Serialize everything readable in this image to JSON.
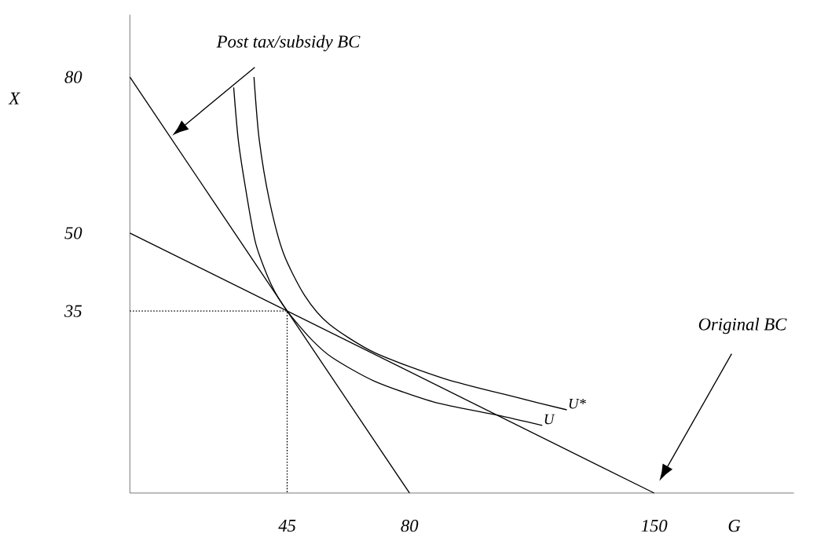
{
  "chart_data": {
    "type": "line",
    "xlabel": "G",
    "ylabel": "X",
    "xlim": [
      0,
      190
    ],
    "ylim": [
      0,
      92
    ],
    "xticks": [
      45,
      80,
      150
    ],
    "yticks": [
      35,
      50,
      80
    ],
    "grid": false,
    "marker": "none",
    "series": [
      {
        "x": [
          0,
          150
        ],
        "values": [
          50,
          0
        ],
        "color": "#000000"
      },
      {
        "x": [
          0,
          80
        ],
        "values": [
          80,
          0
        ],
        "color": "#000000"
      },
      {
        "name": "U",
        "x": [
          29.7,
          31,
          33,
          36,
          40.5,
          45,
          52,
          58,
          70,
          87,
          105,
          118
        ],
        "values": [
          78,
          68,
          59,
          48,
          40,
          35,
          29.5,
          26,
          21.5,
          17.5,
          15,
          13
        ],
        "color": "#000000"
      },
      {
        "name": "U*",
        "x": [
          35.5,
          37,
          40,
          44,
          50,
          57,
          70,
          90,
          110,
          125
        ],
        "values": [
          80,
          68,
          56,
          46,
          38,
          32.5,
          27,
          22,
          18.5,
          16
        ],
        "color": "#000000"
      },
      {
        "x": [
          0,
          45,
          45
        ],
        "values": [
          35,
          35,
          0
        ],
        "color": "#000000",
        "line_style": "dotted"
      }
    ],
    "annotations": [
      "Post tax/subsidy BC",
      "Original BC"
    ]
  }
}
